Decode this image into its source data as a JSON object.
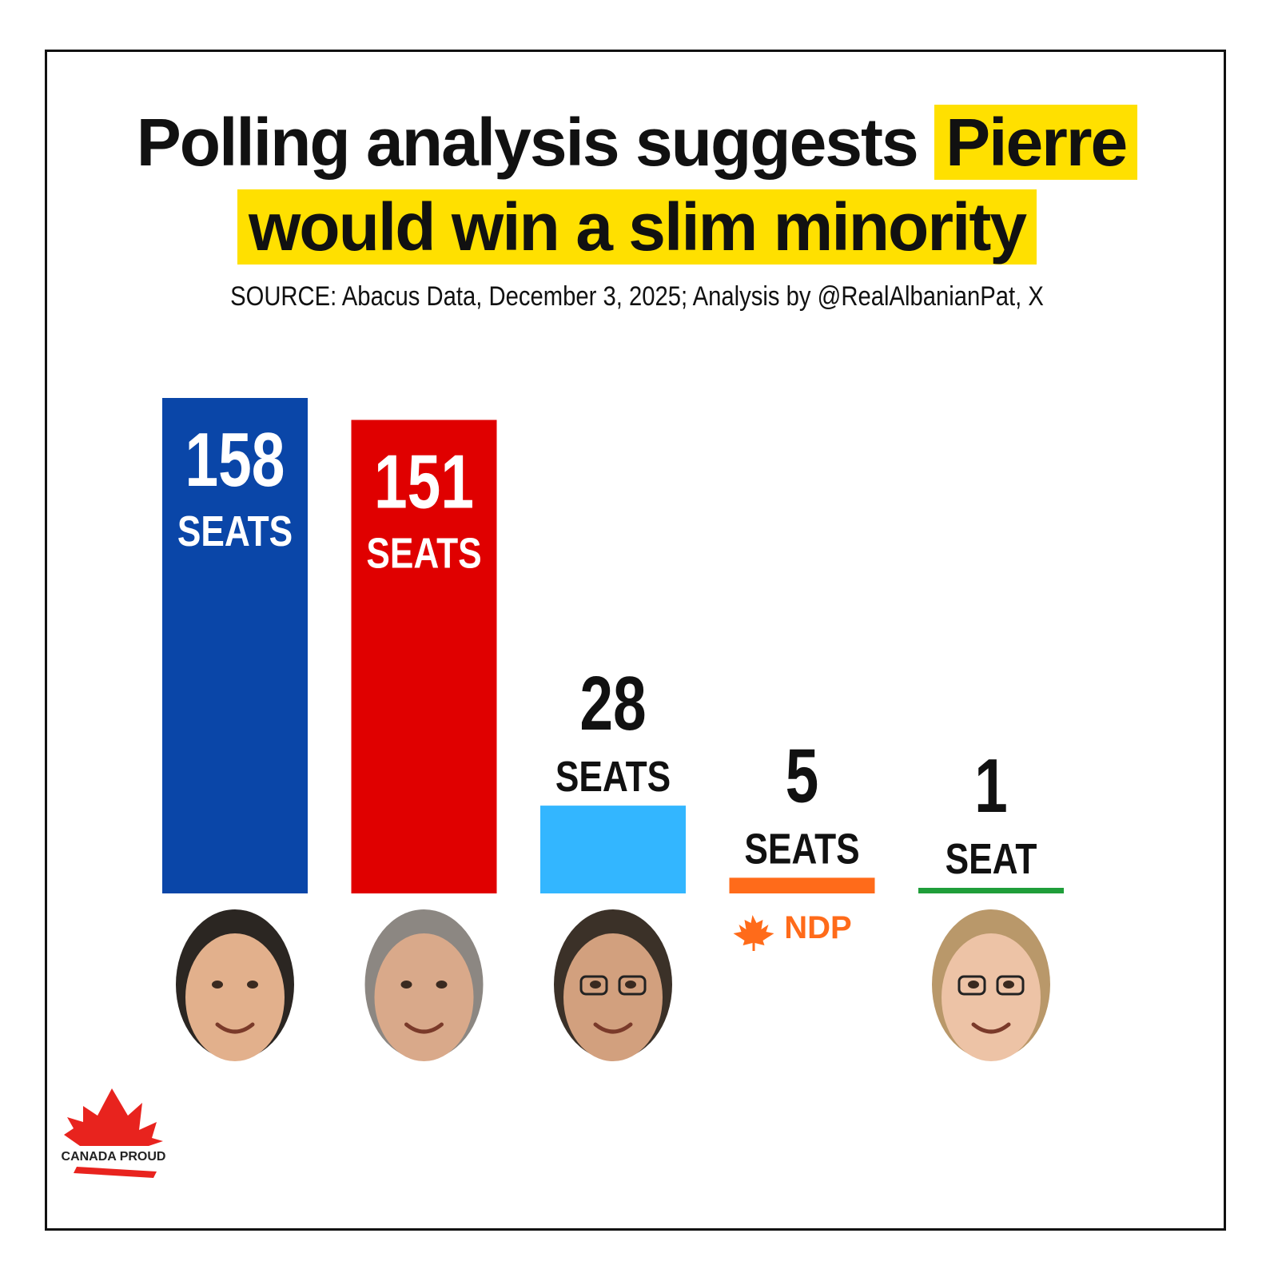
{
  "header": {
    "title_part1": "Polling analysis suggests",
    "title_highlight1": "Pierre",
    "title_highlight2": "would win a slim minority",
    "source": "SOURCE: Abacus Data, December 3, 2025; Analysis by @RealAlbanianPat, X"
  },
  "chart_data": {
    "type": "bar",
    "title": "Polling analysis suggests Pierre would win a slim minority",
    "xlabel": "",
    "ylabel": "",
    "categories": [
      "",
      "",
      "",
      "NDP",
      ""
    ],
    "values": [
      158,
      151,
      28,
      5,
      1
    ],
    "value_labels": [
      "158",
      "151",
      "28",
      "5",
      "1"
    ],
    "unit_labels": [
      "SEATS",
      "SEATS",
      "SEATS",
      "SEATS",
      "SEAT"
    ],
    "colors": [
      "#0a46a8",
      "#e00000",
      "#33b6ff",
      "#ff6b1a",
      "#1f9e3a"
    ],
    "ylim": [
      0,
      158
    ],
    "grid": false,
    "legend": "none"
  },
  "party_logo": {
    "ndp_text": "NDP",
    "ndp_color": "#ff6b1a"
  },
  "brand": {
    "logo_text": "CANADA PROUD",
    "logo_color": "#e8231e"
  },
  "icons": [
    "leader-portrait-icon",
    "maple-leaf-icon",
    "canada-proud-logo-icon"
  ]
}
